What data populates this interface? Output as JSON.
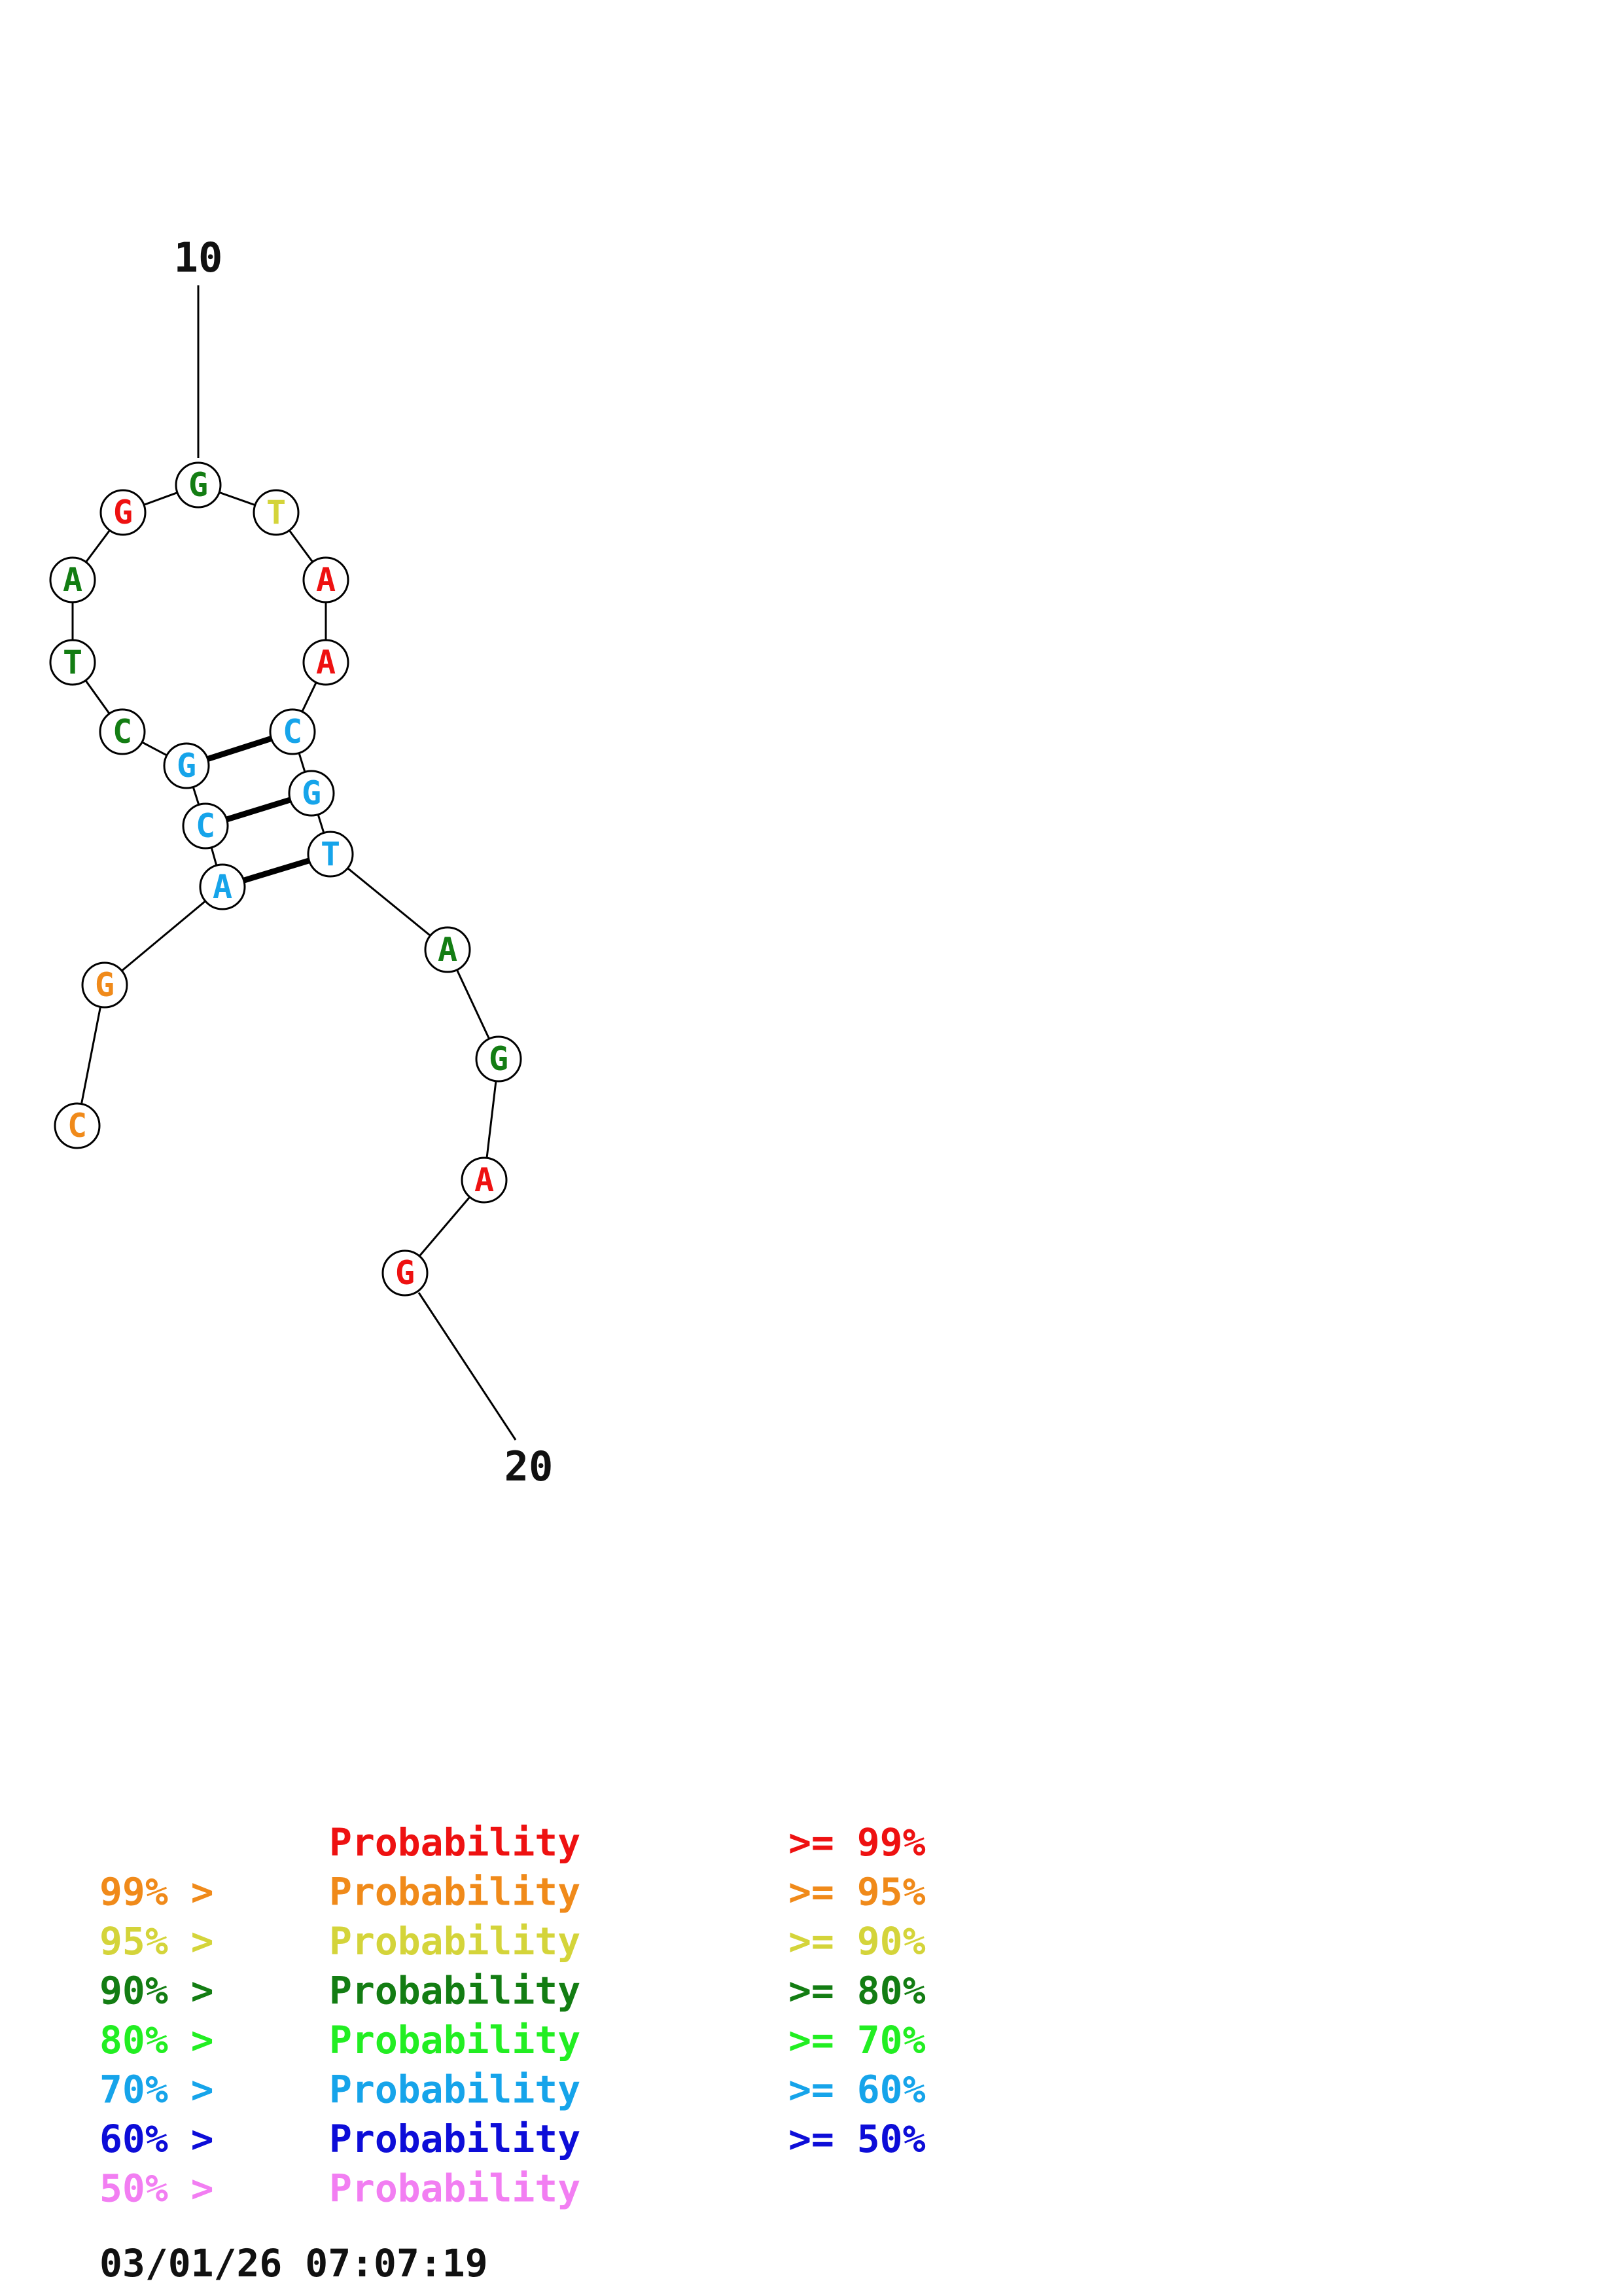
{
  "colors": {
    "p99": "#ee1111",
    "p95": "#f08a1a",
    "p90": "#d4d43a",
    "p80": "#137d13",
    "p70": "#22ee22",
    "p60": "#16a4ea",
    "p50": "#0d0dd8",
    "lt50": "#f27ef2",
    "text": "#111111"
  },
  "nucleotides": [
    {
      "base": "C",
      "level": "p95"
    },
    {
      "base": "G",
      "level": "p95"
    },
    {
      "base": "A",
      "level": "p60"
    },
    {
      "base": "C",
      "level": "p60"
    },
    {
      "base": "G",
      "level": "p60"
    },
    {
      "base": "C",
      "level": "p80"
    },
    {
      "base": "T",
      "level": "p80"
    },
    {
      "base": "A",
      "level": "p80"
    },
    {
      "base": "G",
      "level": "p99"
    },
    {
      "base": "G",
      "level": "p80"
    },
    {
      "base": "T",
      "level": "p90"
    },
    {
      "base": "A",
      "level": "p99"
    },
    {
      "base": "A",
      "level": "p99"
    },
    {
      "base": "C",
      "level": "p60"
    },
    {
      "base": "G",
      "level": "p60"
    },
    {
      "base": "T",
      "level": "p60"
    },
    {
      "base": "A",
      "level": "p80"
    },
    {
      "base": "G",
      "level": "p80"
    },
    {
      "base": "A",
      "level": "p99"
    },
    {
      "base": "G",
      "level": "p99"
    }
  ],
  "base_pairs": [
    [
      3,
      16
    ],
    [
      4,
      15
    ],
    [
      5,
      14
    ]
  ],
  "position_labels": [
    {
      "text": "10",
      "nucleotide": 10
    },
    {
      "text": "20",
      "nucleotide": 20
    }
  ],
  "legend": [
    {
      "prefix": "",
      "main": "Probability",
      "suffix": ">= 99%",
      "level": "p99"
    },
    {
      "prefix": "99% >",
      "main": "Probability",
      "suffix": ">= 95%",
      "level": "p95"
    },
    {
      "prefix": "95% >",
      "main": "Probability",
      "suffix": ">= 90%",
      "level": "p90"
    },
    {
      "prefix": "90% >",
      "main": "Probability",
      "suffix": ">= 80%",
      "level": "p80"
    },
    {
      "prefix": "80% >",
      "main": "Probability",
      "suffix": ">= 70%",
      "level": "p70"
    },
    {
      "prefix": "70% >",
      "main": "Probability",
      "suffix": ">= 60%",
      "level": "p60"
    },
    {
      "prefix": "60% >",
      "main": "Probability",
      "suffix": ">= 50%",
      "level": "p50"
    },
    {
      "prefix": "50% >",
      "main": "Probability",
      "suffix": "",
      "level": "lt50"
    }
  ],
  "timestamp": "03/01/26 07:07:19"
}
